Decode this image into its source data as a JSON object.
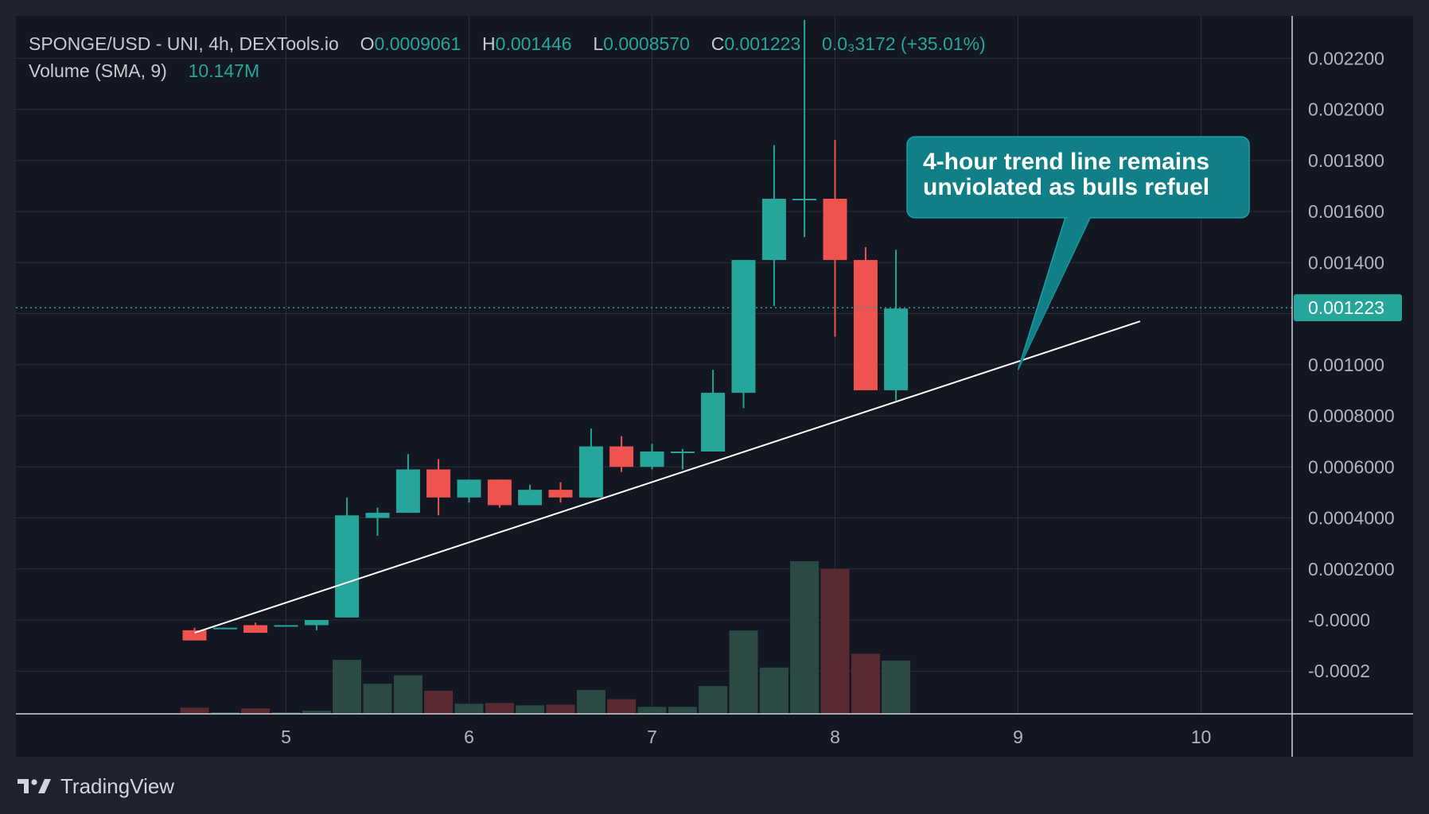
{
  "legend": {
    "symbol": "SPONGE/USD - UNI, 4h, DEXTools.io",
    "open_label": "O",
    "open": "0.0009061",
    "high_label": "H",
    "high": "0.001446",
    "low_label": "L",
    "low": "0.0008570",
    "close_label": "C",
    "close": "0.001223",
    "change": "0.0₃3172 (+35.01%)",
    "volume_label": "Volume (SMA, 9)",
    "volume_value": "10.147M"
  },
  "callout": {
    "line1": "4-hour trend line remains",
    "line2": "unviolated as bulls refuel"
  },
  "brand": {
    "name": "TradingView",
    "icon": "tradingview-logo-icon"
  },
  "colors": {
    "background": "#1e222d",
    "pane": "#131722",
    "bull": "#26a69a",
    "bear": "#ef5350",
    "bull_volume": "#2b4a44",
    "bear_volume": "#5a2a32",
    "callout": "#117f87",
    "trendline": "#ffffff"
  },
  "chart_data": {
    "type": "candlestick",
    "interval": "4h",
    "last_price": 0.001223,
    "last_price_label": "0.001223",
    "x_axis": {
      "ticks": [
        5,
        6,
        7,
        8,
        9,
        10
      ],
      "tick_labels": [
        "5",
        "6",
        "7",
        "8",
        "9",
        "10"
      ],
      "range": [
        4.0,
        11.0
      ]
    },
    "y_axis": {
      "side": "right",
      "range": [
        -0.0003,
        0.00235
      ],
      "ticks": [
        -0.0002,
        0,
        0.0002,
        0.0004,
        0.0006,
        0.0008,
        0.001,
        0.0012,
        0.0014,
        0.0016,
        0.0018,
        0.002,
        0.0022
      ],
      "tick_labels": [
        "-0.0002",
        "-0.0000",
        "0.0002000",
        "",
        "0.0006000",
        "0.0008000",
        "0.001000",
        "",
        "0.001400",
        "0.001600",
        "0.001800",
        "0.002000",
        "0.002200"
      ]
    },
    "y_axis_extra_labels": [
      {
        "value": 0.0004,
        "label": "0.0004000"
      },
      {
        "value": 0.0002,
        "label": "0.0002000"
      }
    ],
    "grid": true,
    "candles": [
      {
        "x": 4.5,
        "open": -4e-05,
        "high": -3e-05,
        "low": -8e-05,
        "close": -8e-05,
        "volume": 0.08
      },
      {
        "x": 4.667,
        "open": -3e-05,
        "high": -3e-05,
        "low": -3e-05,
        "close": -3e-05,
        "volume": 0.02
      },
      {
        "x": 4.833,
        "open": -2e-05,
        "high": -1e-05,
        "low": -5e-05,
        "close": -5e-05,
        "volume": 0.07
      },
      {
        "x": 5.0,
        "open": -2e-05,
        "high": -2e-05,
        "low": -2e-05,
        "close": -2e-05,
        "volume": 0.02
      },
      {
        "x": 5.167,
        "open": -2e-05,
        "high": 0.0,
        "low": -4e-05,
        "close": 0.0,
        "volume": 0.04
      },
      {
        "x": 5.333,
        "open": 1e-05,
        "high": 0.00048,
        "low": 1e-05,
        "close": 0.00041,
        "volume": 0.7
      },
      {
        "x": 5.5,
        "open": 0.0004,
        "high": 0.00044,
        "low": 0.00033,
        "close": 0.00042,
        "volume": 0.39
      },
      {
        "x": 5.667,
        "open": 0.00042,
        "high": 0.00065,
        "low": 0.00042,
        "close": 0.00059,
        "volume": 0.5
      },
      {
        "x": 5.833,
        "open": 0.00059,
        "high": 0.00063,
        "low": 0.00041,
        "close": 0.00048,
        "volume": 0.3
      },
      {
        "x": 6.0,
        "open": 0.00048,
        "high": 0.00055,
        "low": 0.00046,
        "close": 0.00055,
        "volume": 0.13
      },
      {
        "x": 6.167,
        "open": 0.00055,
        "high": 0.00055,
        "low": 0.00044,
        "close": 0.00045,
        "volume": 0.14
      },
      {
        "x": 6.333,
        "open": 0.00045,
        "high": 0.00053,
        "low": 0.00045,
        "close": 0.00051,
        "volume": 0.11
      },
      {
        "x": 6.5,
        "open": 0.00051,
        "high": 0.00054,
        "low": 0.00046,
        "close": 0.00048,
        "volume": 0.12
      },
      {
        "x": 6.667,
        "open": 0.00048,
        "high": 0.00075,
        "low": 0.00048,
        "close": 0.00068,
        "volume": 0.31
      },
      {
        "x": 6.833,
        "open": 0.00068,
        "high": 0.00072,
        "low": 0.00058,
        "close": 0.0006,
        "volume": 0.19
      },
      {
        "x": 7.0,
        "open": 0.0006,
        "high": 0.00069,
        "low": 0.00059,
        "close": 0.00066,
        "volume": 0.09
      },
      {
        "x": 7.167,
        "open": 0.00066,
        "high": 0.00067,
        "low": 0.00059,
        "close": 0.00066,
        "volume": 0.09
      },
      {
        "x": 7.333,
        "open": 0.00066,
        "high": 0.00098,
        "low": 0.00066,
        "close": 0.00089,
        "volume": 0.36
      },
      {
        "x": 7.5,
        "open": 0.00089,
        "high": 0.00141,
        "low": 0.00083,
        "close": 0.00141,
        "volume": 1.08
      },
      {
        "x": 7.667,
        "open": 0.00141,
        "high": 0.00186,
        "low": 0.00123,
        "close": 0.00165,
        "volume": 0.6
      },
      {
        "x": 7.833,
        "open": 0.00165,
        "high": 0.00235,
        "low": 0.0015,
        "close": 0.00165,
        "volume": 1.98
      },
      {
        "x": 8.0,
        "open": 0.00165,
        "high": 0.00188,
        "low": 0.00111,
        "close": 0.00141,
        "volume": 1.88
      },
      {
        "x": 8.167,
        "open": 0.00141,
        "high": 0.00146,
        "low": 0.0009,
        "close": 0.0009,
        "volume": 0.78
      },
      {
        "x": 8.333,
        "open": 0.0009,
        "high": 0.00145,
        "low": 0.00086,
        "close": 0.00122,
        "volume": 0.69
      }
    ],
    "trendline": {
      "x1": 4.5,
      "y1": -5e-05,
      "x2": 9.667,
      "y2": 0.00117
    },
    "annotations": [
      {
        "text": "4-hour trend line remains unviolated as bulls refuel",
        "points_to_x": 9.0,
        "points_to_y": 0.00098
      }
    ]
  }
}
